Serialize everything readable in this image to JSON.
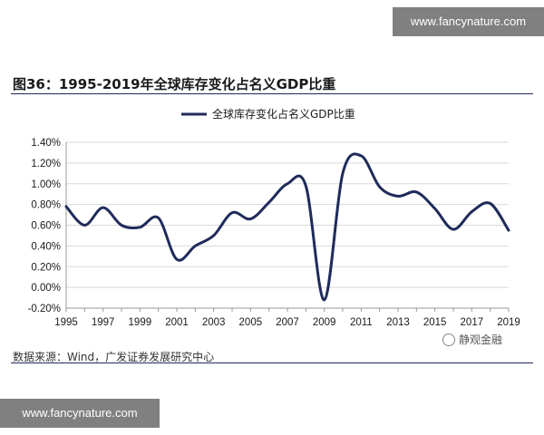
{
  "watermarks": {
    "top": "www.fancynature.com",
    "bottom": "www.fancynature.com"
  },
  "figure": {
    "title": "图36：1995-2019年全球库存变化占名义GDP比重",
    "source": "数据来源：Wind，广发证券发展研究中心",
    "brand": "静观金融"
  },
  "colors": {
    "series_line": "#1f2b5a",
    "rule": "#1f2b5a",
    "grid": "#d9d9d9"
  },
  "chart_data": {
    "type": "line",
    "title": "",
    "xlabel": "",
    "ylabel": "",
    "legend": "top-center",
    "grid": true,
    "x_ticks": [
      "1995",
      "1997",
      "1999",
      "2001",
      "2003",
      "2005",
      "2007",
      "2009",
      "2011",
      "2013",
      "2015",
      "2017",
      "2019"
    ],
    "y_ticks": [
      "1.40%",
      "1.20%",
      "1.00%",
      "0.80%",
      "0.60%",
      "0.40%",
      "0.20%",
      "0.00%",
      "-0.20%"
    ],
    "ylim": [
      -0.2,
      1.4
    ],
    "xlim": [
      1995,
      2019
    ],
    "series": [
      {
        "name": "全球库存变化占名义GDP比重",
        "x": [
          1995,
          1996,
          1997,
          1998,
          1999,
          2000,
          2001,
          2002,
          2003,
          2004,
          2005,
          2006,
          2007,
          2008,
          2009,
          2010,
          2011,
          2012,
          2013,
          2014,
          2015,
          2016,
          2017,
          2018,
          2019
        ],
        "values": [
          0.78,
          0.6,
          0.77,
          0.6,
          0.58,
          0.67,
          0.27,
          0.4,
          0.5,
          0.72,
          0.66,
          0.82,
          1.0,
          0.98,
          -0.12,
          1.1,
          1.27,
          0.97,
          0.88,
          0.92,
          0.76,
          0.56,
          0.73,
          0.81,
          0.55
        ]
      }
    ]
  }
}
